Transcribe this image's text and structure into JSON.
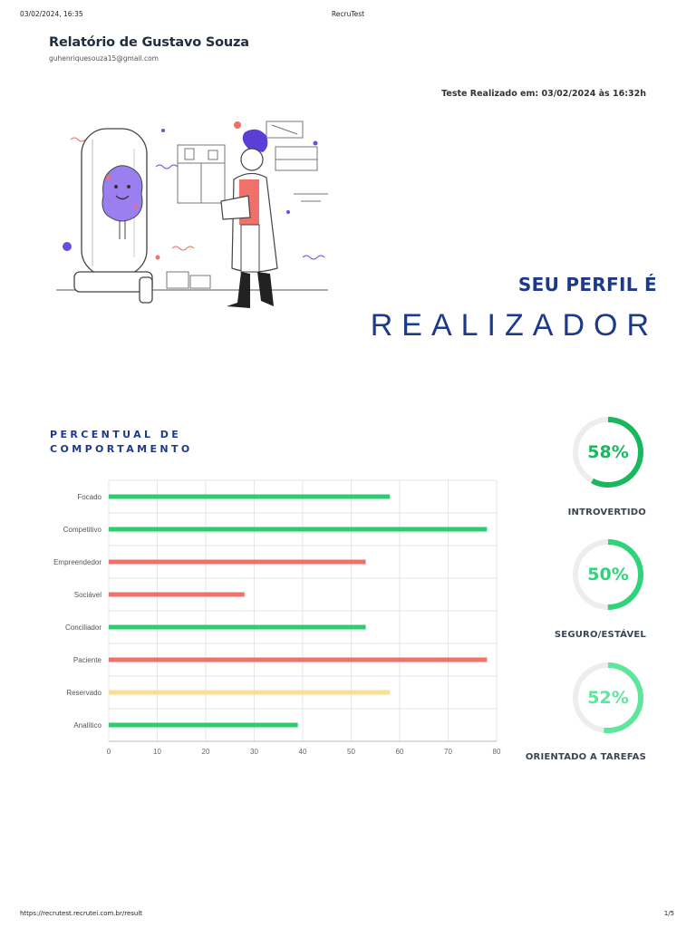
{
  "print_header": {
    "datetime": "03/02/2024, 16:35",
    "page_title": "RecruTest"
  },
  "print_footer": {
    "url": "https://recrutest.recrutei.com.br/result",
    "page": "1/5"
  },
  "report": {
    "title": "Relatório de Gustavo Souza",
    "email": "guhenriquesouza15@gmail.com",
    "test_date": "Teste Realizado em: 03/02/2024 às 16:32h"
  },
  "profile": {
    "label": "SEU PERFIL É",
    "type": "REALIZADOR"
  },
  "section_title": "PERCENTUAL DE COMPORTAMENTO",
  "colors": {
    "green": "#2ecc71",
    "red": "#f0706a",
    "yellow": "#f9df8f",
    "navy": "#1d3a8a"
  },
  "chart_data": {
    "type": "bar",
    "orientation": "horizontal",
    "categories": [
      "Focado",
      "Competitivo",
      "Empreendedor",
      "Sociável",
      "Conciliador",
      "Paciente",
      "Reservado",
      "Analítico"
    ],
    "values": [
      58,
      78,
      53,
      28,
      53,
      78,
      58,
      39
    ],
    "bar_colors": [
      "green",
      "green",
      "red",
      "red",
      "green",
      "red",
      "yellow",
      "green"
    ],
    "xlim": [
      0,
      80
    ],
    "xticks": [
      "0",
      "10",
      "20",
      "30",
      "40",
      "50",
      "60",
      "70",
      "80"
    ],
    "grid": true
  },
  "gauges": [
    {
      "value": 58,
      "text": "58%",
      "label": "INTROVERTIDO",
      "color": "#18b85f"
    },
    {
      "value": 50,
      "text": "50%",
      "label": "SEGURO/ESTÁVEL",
      "color": "#2ed47a"
    },
    {
      "value": 52,
      "text": "52%",
      "label": "ORIENTADO A TAREFAS",
      "color": "#5ee69c"
    }
  ]
}
